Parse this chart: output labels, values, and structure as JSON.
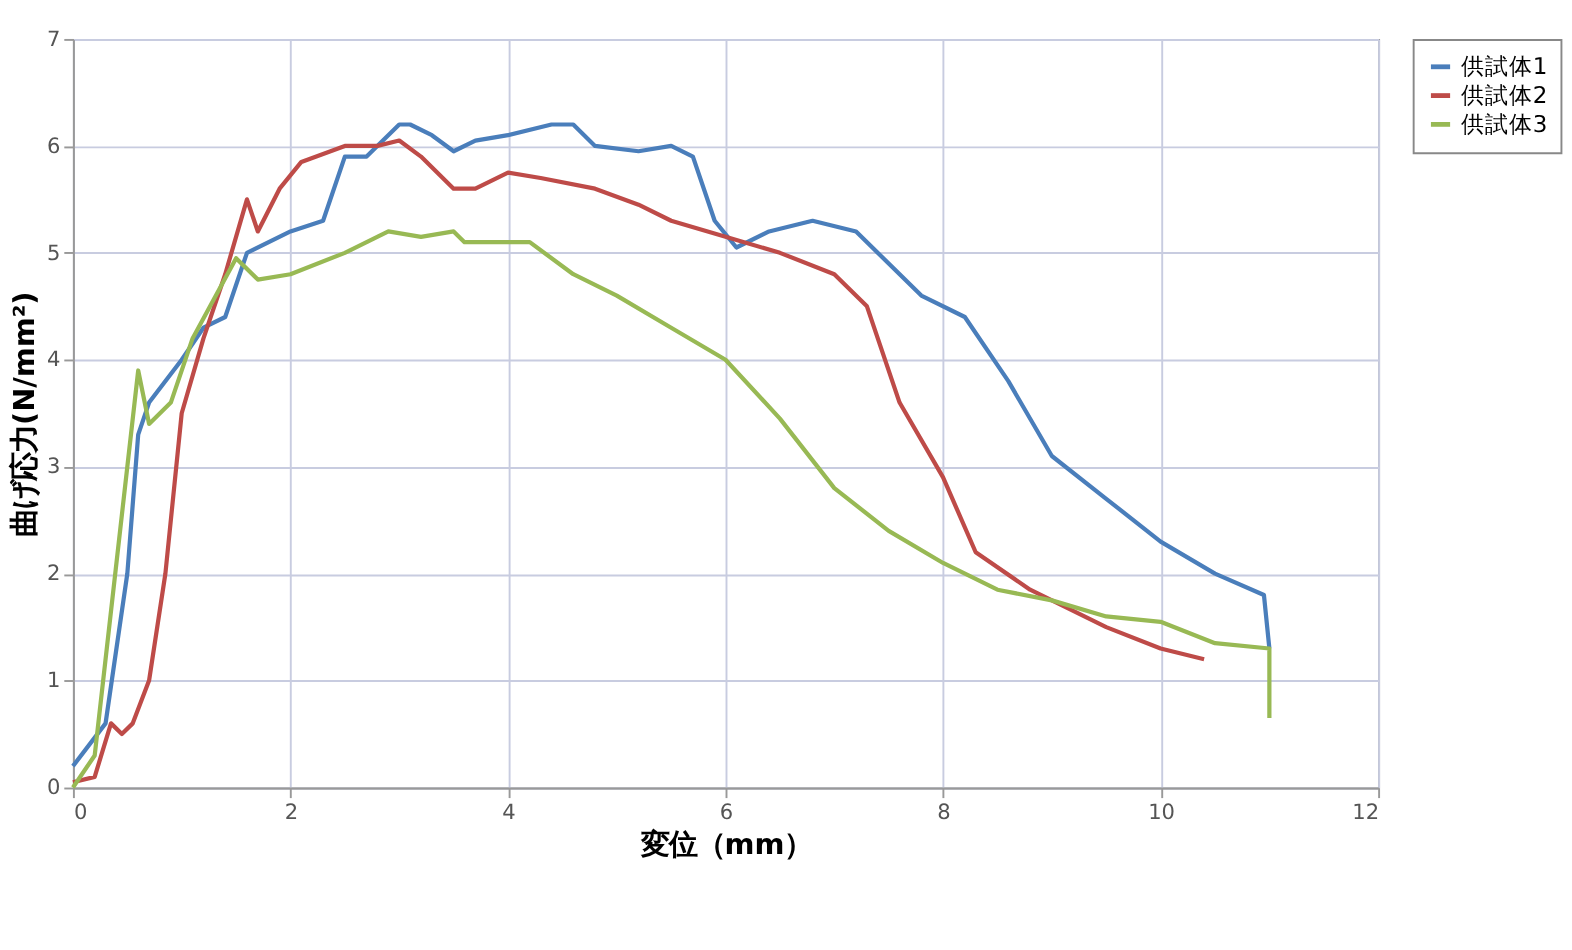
{
  "chart_data": {
    "type": "line",
    "xlabel": "変位（mm）",
    "ylabel": "曲げ応力(N/mm²)",
    "xlim": [
      0,
      12
    ],
    "xticks": [
      0,
      2,
      4,
      6,
      8,
      10,
      12
    ],
    "ylim": [
      0,
      7
    ],
    "yticks": [
      0,
      1,
      2,
      3,
      4,
      5,
      6,
      7
    ],
    "grid": true,
    "legend": "right",
    "line_style": "solid",
    "marker": "none",
    "series": [
      {
        "name": "供試体1",
        "color": "#4a7ebb",
        "x": [
          0,
          0.3,
          0.5,
          0.6,
          0.7,
          1.0,
          1.2,
          1.4,
          1.6,
          2.0,
          2.3,
          2.5,
          2.7,
          3.0,
          3.1,
          3.3,
          3.5,
          3.7,
          4.0,
          4.4,
          4.6,
          4.8,
          5.2,
          5.5,
          5.7,
          5.9,
          6.1,
          6.4,
          6.8,
          7.2,
          7.5,
          7.8,
          8.2,
          8.6,
          9.0,
          9.5,
          10.0,
          10.5,
          10.95,
          11.0
        ],
        "values": [
          0.2,
          0.6,
          2.0,
          3.3,
          3.6,
          4.0,
          4.3,
          4.4,
          5.0,
          5.2,
          5.3,
          5.9,
          5.9,
          6.2,
          6.2,
          6.1,
          5.95,
          6.05,
          6.1,
          6.2,
          6.2,
          6.0,
          5.95,
          6.0,
          5.9,
          5.3,
          5.05,
          5.2,
          5.3,
          5.2,
          4.9,
          4.6,
          4.4,
          3.8,
          3.1,
          2.7,
          2.3,
          2.0,
          1.8,
          1.3
        ]
      },
      {
        "name": "供試体2",
        "color": "#be4b48",
        "x": [
          0,
          0.2,
          0.35,
          0.45,
          0.55,
          0.7,
          0.85,
          1.0,
          1.2,
          1.4,
          1.6,
          1.7,
          1.9,
          2.1,
          2.5,
          2.8,
          3.0,
          3.2,
          3.5,
          3.7,
          4.0,
          4.3,
          4.8,
          5.2,
          5.5,
          6.0,
          6.5,
          7.0,
          7.3,
          7.6,
          8.0,
          8.3,
          8.8,
          9.5,
          10.0,
          10.4
        ],
        "values": [
          0.05,
          0.1,
          0.6,
          0.5,
          0.6,
          1.0,
          2.0,
          3.5,
          4.2,
          4.8,
          5.5,
          5.2,
          5.6,
          5.85,
          6.0,
          6.0,
          6.05,
          5.9,
          5.6,
          5.6,
          5.75,
          5.7,
          5.6,
          5.45,
          5.3,
          5.15,
          5.0,
          4.8,
          4.5,
          3.6,
          2.9,
          2.2,
          1.85,
          1.5,
          1.3,
          1.2
        ]
      },
      {
        "name": "供試体3",
        "color": "#98b954",
        "x": [
          0,
          0.2,
          0.5,
          0.6,
          0.7,
          0.9,
          1.1,
          1.5,
          1.7,
          2.0,
          2.5,
          2.9,
          3.2,
          3.5,
          3.6,
          4.0,
          4.2,
          4.6,
          5.0,
          5.5,
          6.0,
          6.5,
          7.0,
          7.5,
          8.0,
          8.5,
          9.0,
          9.5,
          10.0,
          10.5,
          11.0,
          11.0
        ],
        "values": [
          0.0,
          0.3,
          3.0,
          3.9,
          3.4,
          3.6,
          4.2,
          4.95,
          4.75,
          4.8,
          5.0,
          5.2,
          5.15,
          5.2,
          5.1,
          5.1,
          5.1,
          4.8,
          4.6,
          4.3,
          4.0,
          3.45,
          2.8,
          2.4,
          2.1,
          1.85,
          1.75,
          1.6,
          1.55,
          1.35,
          1.3,
          0.65
        ]
      }
    ]
  }
}
